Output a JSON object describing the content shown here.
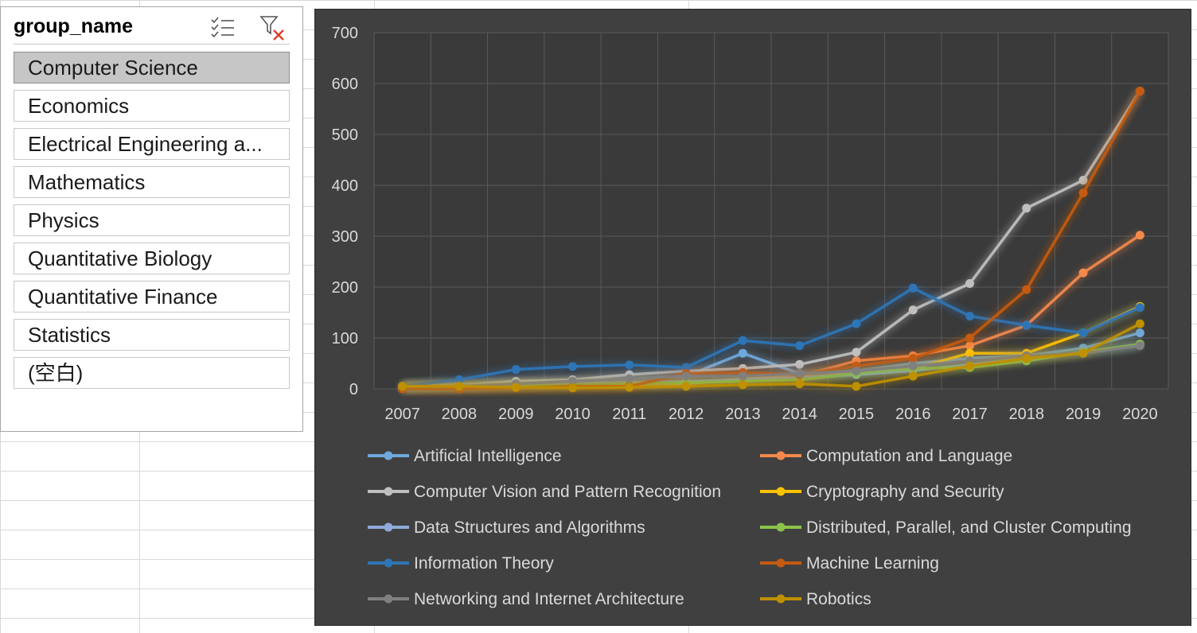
{
  "slicer": {
    "title": "group_name",
    "items": [
      {
        "label": "Computer Science",
        "selected": true
      },
      {
        "label": "Economics",
        "selected": false
      },
      {
        "label": "Electrical Engineering a...",
        "selected": false
      },
      {
        "label": "Mathematics",
        "selected": false
      },
      {
        "label": "Physics",
        "selected": false
      },
      {
        "label": "Quantitative Biology",
        "selected": false
      },
      {
        "label": "Quantitative Finance",
        "selected": false
      },
      {
        "label": "Statistics",
        "selected": false
      },
      {
        "label": "(空白)",
        "selected": false
      }
    ],
    "icons": [
      "multi-select-icon",
      "clear-filter-icon"
    ]
  },
  "chart_data": {
    "type": "line",
    "x": [
      "2007",
      "2008",
      "2009",
      "2010",
      "2011",
      "2012",
      "2013",
      "2014",
      "2015",
      "2016",
      "2017",
      "2018",
      "2019",
      "2020"
    ],
    "ylim": [
      0,
      700
    ],
    "yticks": [
      0,
      100,
      200,
      300,
      400,
      500,
      600,
      700
    ],
    "grid": true,
    "legend_position": "bottom",
    "series": [
      {
        "name": "Artificial Intelligence",
        "color": "#6fa8dc",
        "values": [
          5,
          8,
          12,
          15,
          20,
          25,
          70,
          30,
          35,
          50,
          60,
          65,
          80,
          110
        ]
      },
      {
        "name": "Computation and Language",
        "color": "#f4894b",
        "values": [
          2,
          3,
          5,
          6,
          8,
          10,
          20,
          25,
          55,
          65,
          85,
          125,
          228,
          302
        ]
      },
      {
        "name": "Computer Vision and Pattern Recognition",
        "color": "#bfbfbf",
        "values": [
          5,
          8,
          15,
          18,
          28,
          35,
          40,
          48,
          72,
          155,
          207,
          355,
          410,
          585
        ]
      },
      {
        "name": "Cryptography and Security",
        "color": "#ffc000",
        "values": [
          5,
          6,
          8,
          10,
          12,
          14,
          16,
          22,
          30,
          40,
          70,
          70,
          110,
          162
        ]
      },
      {
        "name": "Data Structures and Algorithms",
        "color": "#8faadc",
        "values": [
          3,
          5,
          8,
          10,
          12,
          14,
          18,
          22,
          28,
          36,
          48,
          60,
          72,
          85
        ]
      },
      {
        "name": "Distributed, Parallel, and Cluster Computing",
        "color": "#8bc34a",
        "values": [
          2,
          4,
          6,
          8,
          10,
          12,
          15,
          18,
          30,
          40,
          42,
          55,
          72,
          88
        ]
      },
      {
        "name": "Information Theory",
        "color": "#2e75b6",
        "values": [
          5,
          18,
          38,
          44,
          47,
          42,
          95,
          85,
          128,
          198,
          143,
          125,
          110,
          160
        ]
      },
      {
        "name": "Machine Learning",
        "color": "#c55a11",
        "values": [
          0,
          0,
          2,
          5,
          5,
          30,
          32,
          28,
          45,
          60,
          100,
          195,
          385,
          585
        ]
      },
      {
        "name": "Networking and Internet Architecture",
        "color": "#808080",
        "values": [
          5,
          5,
          10,
          15,
          20,
          25,
          25,
          30,
          35,
          45,
          55,
          65,
          70,
          85
        ]
      },
      {
        "name": "Robotics",
        "color": "#bf9000",
        "values": [
          5,
          5,
          3,
          2,
          3,
          5,
          8,
          10,
          5,
          25,
          45,
          60,
          70,
          128
        ]
      }
    ]
  }
}
